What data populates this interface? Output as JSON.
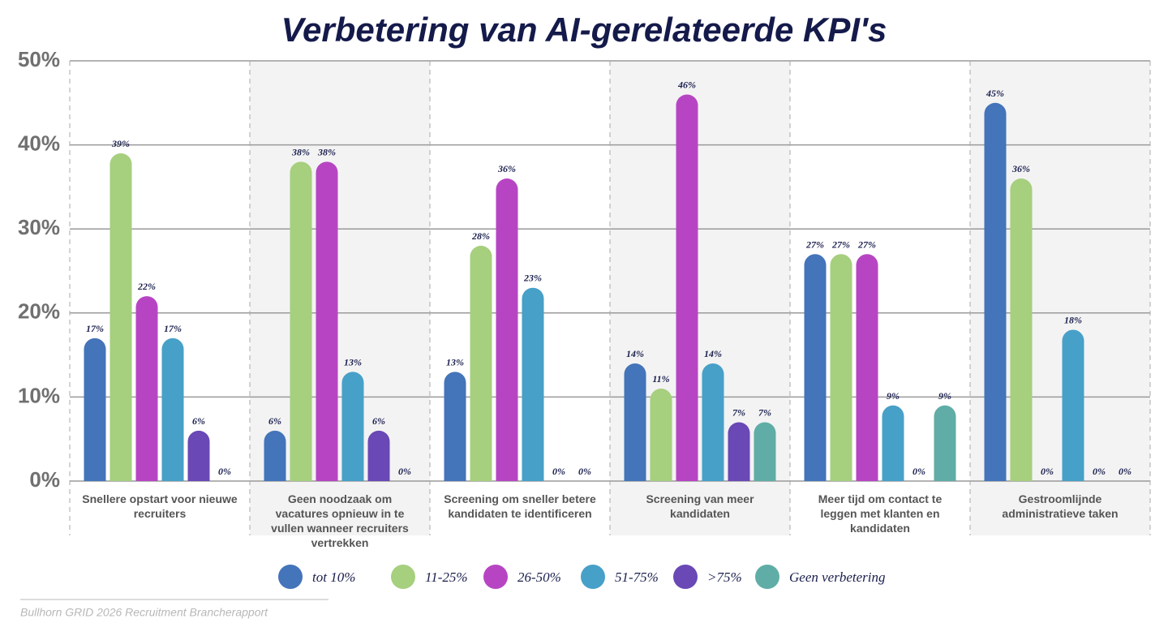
{
  "chart_data": {
    "type": "bar",
    "title": "Verbetering van AI-gerelateerde KPI's",
    "source": "Bullhorn GRID 2026 Recruitment Brancherapport",
    "categories": [
      "Snellere opstart voor nieuwe recruiters",
      "Geen noodzaak om vacatures opnieuw in te vullen wanneer recruiters vertrekken",
      "Screening om sneller betere kandidaten te identificeren",
      "Screening van meer kandidaten",
      "Meer tijd om contact te leggen met klanten en kandidaten",
      "Gestroomlijnde administratieve taken"
    ],
    "series": [
      {
        "name": "tot 10%",
        "color": "#4474b9",
        "values": [
          17,
          6,
          13,
          14,
          27,
          45
        ],
        "value_labels": [
          "17%",
          "6%",
          "13%",
          "14%",
          "27%",
          "45%"
        ]
      },
      {
        "name": "11-25%",
        "color": "#a6cf7e",
        "values": [
          39,
          38,
          28,
          11,
          27,
          36
        ],
        "value_labels": [
          "39%",
          "38%",
          "28%",
          "11%",
          "27%",
          "36%"
        ]
      },
      {
        "name": "26-50%",
        "color": "#b745c3",
        "values": [
          22,
          38,
          36,
          46,
          27,
          0
        ],
        "value_labels": [
          "22%",
          "38%",
          "36%",
          "46%",
          "27%",
          "0%"
        ]
      },
      {
        "name": "51-75%",
        "color": "#47a0c8",
        "values": [
          17,
          13,
          23,
          14,
          9,
          18
        ],
        "value_labels": [
          "17%",
          "13%",
          "23%",
          "14%",
          "9%",
          "18%"
        ]
      },
      {
        "name": ">75%",
        "color": "#6a48b5",
        "values": [
          6,
          6,
          0,
          7,
          0,
          0
        ],
        "value_labels": [
          "6%",
          "6%",
          "0%",
          "7%",
          "0%",
          "0%"
        ]
      },
      {
        "name": "Geen verbetering",
        "color": "#5fada6",
        "values": [
          0,
          0,
          0,
          7,
          9,
          0
        ],
        "value_labels": [
          "0%",
          "0%",
          "0%",
          "7%",
          "9%",
          "0%"
        ]
      }
    ],
    "ylim": [
      0,
      50
    ],
    "yticks": [
      {
        "value": 0,
        "label": "0%"
      },
      {
        "value": 10,
        "label": "10%"
      },
      {
        "value": 20,
        "label": "20%"
      },
      {
        "value": 30,
        "label": "30%"
      },
      {
        "value": 40,
        "label": "40%"
      },
      {
        "value": 50,
        "label": "50%"
      }
    ],
    "grid": true
  }
}
